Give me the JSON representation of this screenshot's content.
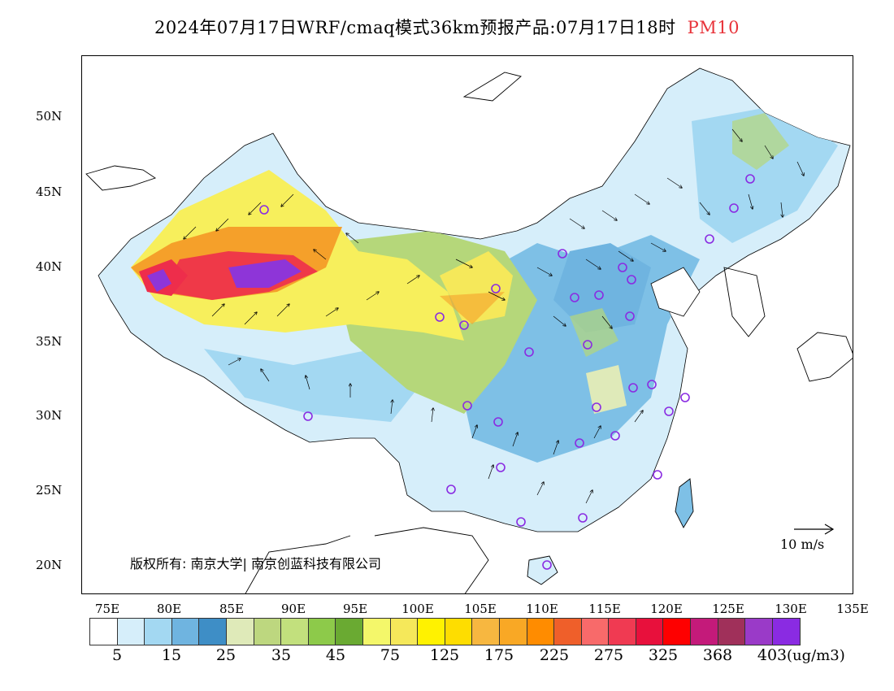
{
  "header": {
    "title": "2024年07月17日WRF/cmaq模式36km预报产品:07月17日18时",
    "variable": "PM10"
  },
  "map": {
    "lat_labels": [
      "50N",
      "45N",
      "40N",
      "35N",
      "30N",
      "25N",
      "20N"
    ],
    "lon_labels": [
      "75E",
      "80E",
      "85E",
      "90E",
      "95E",
      "100E",
      "105E",
      "110E",
      "115E",
      "120E",
      "125E",
      "130E",
      "135E"
    ],
    "copyright": "版权所有: 南京大学| 南京创蓝科技有限公司",
    "reference_vector": "10 m/s",
    "colors": {
      "clean": "#d6eefa",
      "blue": "#7ec0e6",
      "green": "#b5d77a",
      "yellow": "#f7ef5c",
      "orange": "#f5a02a",
      "red": "#ee2d4b",
      "purple": "#8e35d8",
      "station_marker": "#8a2be2"
    }
  },
  "colorbar": {
    "colors": [
      "#ffffff",
      "#d6eefa",
      "#a3d8f2",
      "#6fb4e0",
      "#3e8ec6",
      "#dfeab9",
      "#bdd77f",
      "#c2e07d",
      "#8dca4a",
      "#6aaa32",
      "#f4f76a",
      "#f5e85a",
      "#fff200",
      "#fedd00",
      "#f7b740",
      "#f9a825",
      "#ff8c00",
      "#ef5f2a",
      "#f86a6a",
      "#f03a52",
      "#e8103c",
      "#fe0000",
      "#c41a7a",
      "#a0305a",
      "#9a3ac8",
      "#8a2be2"
    ],
    "labels": [
      "5",
      "15",
      "25",
      "35",
      "45",
      "75",
      "125",
      "175",
      "225",
      "275",
      "325",
      "368",
      "403"
    ],
    "unit": "(ug/m3)"
  }
}
